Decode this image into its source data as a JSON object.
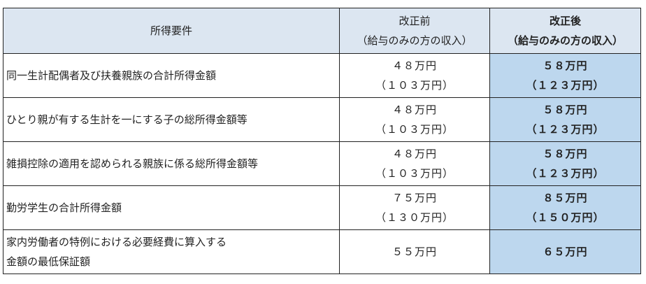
{
  "header": {
    "requirement": "所得要件",
    "before_title": "改正前",
    "before_sub": "（給与のみの方の収入）",
    "after_title": "改正後",
    "after_sub": "（給与のみの方の収入）"
  },
  "rows": [
    {
      "requirement": [
        "同一生計配偶者及び扶養親族の合計所得金額"
      ],
      "before": [
        "４８万円",
        "（１０３万円）"
      ],
      "after": [
        "５８万円",
        "（１２３万円）"
      ]
    },
    {
      "requirement": [
        "ひとり親が有する生計を一にする子の総所得金額等"
      ],
      "before": [
        "４８万円",
        "（１０３万円）"
      ],
      "after": [
        "５８万円",
        "（１２３万円）"
      ]
    },
    {
      "requirement": [
        "雑損控除の適用を認められる親族に係る総所得金額等"
      ],
      "before": [
        "４８万円",
        "（１０３万円）"
      ],
      "after": [
        "５８万円",
        "（１２３万円）"
      ]
    },
    {
      "requirement": [
        "勤労学生の合計所得金額"
      ],
      "before": [
        "７５万円",
        "（１３０万円）"
      ],
      "after": [
        "８５万円",
        "（１５０万円）"
      ]
    },
    {
      "requirement": [
        "家内労働者の特例における必要経費に算入する",
        "金額の最低保証額"
      ],
      "before": [
        "５５万円"
      ],
      "after": [
        "６５万円"
      ]
    }
  ],
  "colors": {
    "header_bg": "#dce6f1",
    "after_col_bg": "#bdd7ee"
  }
}
